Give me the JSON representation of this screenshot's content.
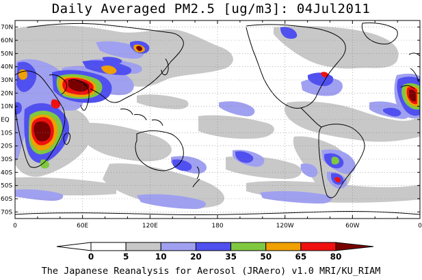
{
  "title": "Daily Averaged PM2.5 [ug/m3]: 04Jul2011",
  "footer": "The Japanese Reanalysis for Aerosol (JRAero) v1.0 MRI/KU_RIAM",
  "lat_ticks": [
    "70N",
    "60N",
    "50N",
    "40N",
    "30N",
    "20N",
    "10N",
    "EQ",
    "10S",
    "20S",
    "30S",
    "40S",
    "50S",
    "60S",
    "70S"
  ],
  "lat_values": [
    70,
    60,
    50,
    40,
    30,
    20,
    10,
    0,
    -10,
    -20,
    -30,
    -40,
    -50,
    -60,
    -70
  ],
  "lon_ticks": [
    "0",
    "60E",
    "120E",
    "180",
    "120W",
    "60W",
    "0"
  ],
  "lon_values": [
    0,
    60,
    120,
    180,
    240,
    300,
    360
  ],
  "colorbar": {
    "levels": [
      "0",
      "5",
      "10",
      "20",
      "35",
      "50",
      "65",
      "80"
    ],
    "colors": [
      "#ffffff",
      "#c8c8c8",
      "#a0a0f0",
      "#5050f0",
      "#80c840",
      "#f0a000",
      "#f01010",
      "#780000"
    ]
  },
  "colors": {
    "land_outline": "#000000",
    "grid": "#808080",
    "background": "#ffffff"
  }
}
